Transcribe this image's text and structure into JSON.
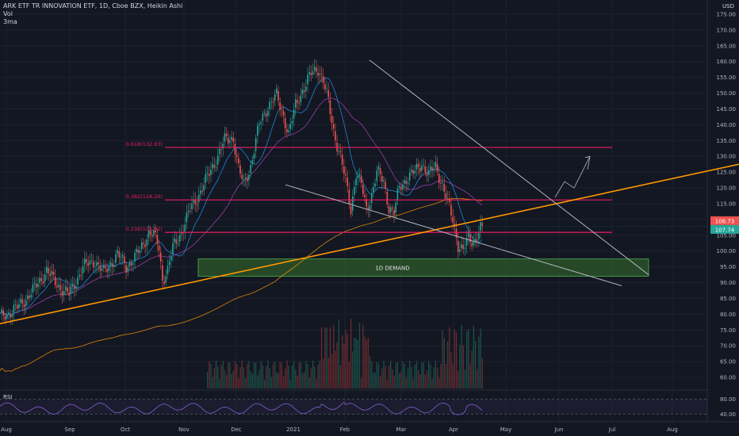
{
  "legend": {
    "title": "ARK ETF TR INNOVATION ETF, 1D, Cboe BZX, Heikin Ashi",
    "vol": "Vol",
    "ma": "3ma"
  },
  "currency": "USD",
  "colors": {
    "background": "#131722",
    "up": "#26a69a",
    "down": "#ef5350",
    "fib": "#e91e63",
    "trendline": "#ff9800",
    "wedge": "#b2b5be",
    "demand_fill": "#2e5a2a",
    "demand_border": "#4caf50",
    "rsi": "#7e57c2",
    "ma_fast": "#2196f3",
    "ma_mid": "#ab47bc",
    "ma_slow": "#ff9800"
  },
  "chart_data": {
    "type": "candlestick",
    "x_labels": [
      "Aug",
      "Sep",
      "Oct",
      "Nov",
      "Dec",
      "2021",
      "Feb",
      "Mar",
      "Apr",
      "May",
      "Jun",
      "Jul",
      "Aug"
    ],
    "price_axis": {
      "ticks": [
        60,
        65,
        70,
        75,
        80,
        85,
        90,
        95,
        100,
        105,
        110,
        115,
        120,
        125,
        130,
        135,
        140,
        145,
        150,
        155,
        160,
        165,
        170,
        175
      ],
      "tick_labels": [
        "60.00",
        "65.00",
        "70.00",
        "75.00",
        "80.00",
        "85.00",
        "90.00",
        "95.00",
        "100.00",
        "105.00",
        "110.00",
        "115.00",
        "120.00",
        "125.00",
        "130.00",
        "135.00",
        "140.00",
        "145.00",
        "150.00",
        "155.00",
        "160.00",
        "165.00",
        "170.00",
        "175.00"
      ],
      "range": [
        56,
        178
      ]
    },
    "price_labels": [
      {
        "value": 108.73,
        "text": "108.73",
        "color": "#ef5350"
      },
      {
        "value": 107.74,
        "text": "107.74",
        "color": "#26a69a"
      }
    ],
    "fib_levels": [
      {
        "label": "0.618(132.83)",
        "value": 132.83
      },
      {
        "label": "0.382(116.20)",
        "value": 116.2
      },
      {
        "label": "0.236(105.92)",
        "value": 105.92
      }
    ],
    "demand_zone": {
      "label": "1D DEMAND",
      "low": 92,
      "high": 97.5
    },
    "rsi": {
      "label": "RSI",
      "ticks": [
        80,
        40
      ],
      "tick_labels": [
        "80.00",
        "40.00"
      ],
      "range": [
        20,
        100
      ]
    },
    "keypoints": [
      {
        "d": 0,
        "p": 79
      },
      {
        "d": 10,
        "p": 82
      },
      {
        "d": 20,
        "p": 88
      },
      {
        "d": 27,
        "p": 94
      },
      {
        "d": 32,
        "p": 90
      },
      {
        "d": 40,
        "p": 86
      },
      {
        "d": 48,
        "p": 95
      },
      {
        "d": 55,
        "p": 97
      },
      {
        "d": 60,
        "p": 93
      },
      {
        "d": 68,
        "p": 99
      },
      {
        "d": 73,
        "p": 95
      },
      {
        "d": 81,
        "p": 100
      },
      {
        "d": 86,
        "p": 106
      },
      {
        "d": 89,
        "p": 105
      },
      {
        "d": 92,
        "p": 101
      },
      {
        "d": 94,
        "p": 91
      },
      {
        "d": 97,
        "p": 94
      },
      {
        "d": 100,
        "p": 101
      },
      {
        "d": 104,
        "p": 105
      },
      {
        "d": 110,
        "p": 113
      },
      {
        "d": 118,
        "p": 121
      },
      {
        "d": 125,
        "p": 129
      },
      {
        "d": 130,
        "p": 135
      },
      {
        "d": 135,
        "p": 136
      },
      {
        "d": 138,
        "p": 126
      },
      {
        "d": 141,
        "p": 121
      },
      {
        "d": 145,
        "p": 127
      },
      {
        "d": 150,
        "p": 140
      },
      {
        "d": 155,
        "p": 146
      },
      {
        "d": 160,
        "p": 149
      },
      {
        "d": 164,
        "p": 143
      },
      {
        "d": 167,
        "p": 137
      },
      {
        "d": 171,
        "p": 146
      },
      {
        "d": 175,
        "p": 151
      },
      {
        "d": 180,
        "p": 156
      },
      {
        "d": 184,
        "p": 158
      },
      {
        "d": 187,
        "p": 154
      },
      {
        "d": 190,
        "p": 147
      },
      {
        "d": 193,
        "p": 138
      },
      {
        "d": 197,
        "p": 130
      },
      {
        "d": 200,
        "p": 122
      },
      {
        "d": 203,
        "p": 113
      },
      {
        "d": 206,
        "p": 125
      },
      {
        "d": 209,
        "p": 121
      },
      {
        "d": 212,
        "p": 113
      },
      {
        "d": 215,
        "p": 118
      },
      {
        "d": 218,
        "p": 125
      },
      {
        "d": 222,
        "p": 122
      },
      {
        "d": 225,
        "p": 114
      },
      {
        "d": 228,
        "p": 112
      },
      {
        "d": 231,
        "p": 120
      },
      {
        "d": 235,
        "p": 123
      },
      {
        "d": 240,
        "p": 125
      },
      {
        "d": 244,
        "p": 128
      },
      {
        "d": 248,
        "p": 124
      },
      {
        "d": 252,
        "p": 127
      },
      {
        "d": 256,
        "p": 121
      },
      {
        "d": 259,
        "p": 115
      },
      {
        "d": 262,
        "p": 110
      },
      {
        "d": 265,
        "p": 102
      },
      {
        "d": 268,
        "p": 100
      },
      {
        "d": 271,
        "p": 104
      },
      {
        "d": 274,
        "p": 103
      },
      {
        "d": 277,
        "p": 106
      },
      {
        "d": 279,
        "p": 108
      }
    ]
  }
}
